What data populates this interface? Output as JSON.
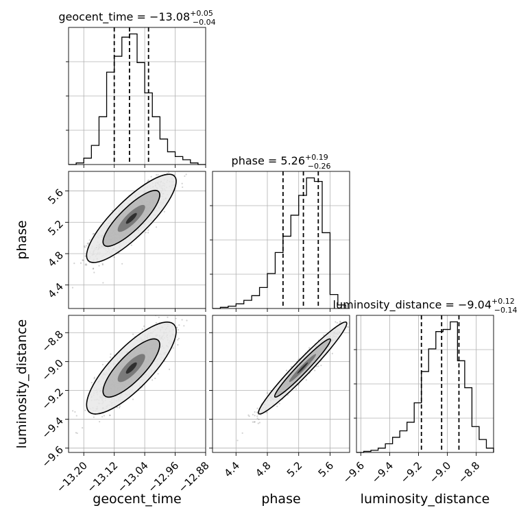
{
  "chart_data": {
    "type": "corner",
    "parameters": [
      "geocent_time",
      "phase",
      "luminosity_distance"
    ],
    "labels": {
      "geocent_time": "geocent_time",
      "phase": "phase",
      "luminosity_distance": "luminosity_distance"
    },
    "grid": true,
    "ranges": {
      "geocent_time": [
        -13.24,
        -12.88
      ],
      "phase": [
        4.1,
        5.85
      ],
      "luminosity_distance": [
        -9.63,
        -8.68
      ]
    },
    "ticks": {
      "geocent_time": [
        -13.2,
        -13.12,
        -13.04,
        -12.96,
        -12.88
      ],
      "phase": [
        4.4,
        4.8,
        5.2,
        5.6
      ],
      "luminosity_distance": [
        -9.6,
        -9.4,
        -9.2,
        -9.0,
        -8.8
      ]
    },
    "tick_labels": {
      "geocent_time": [
        "−13.20",
        "−13.12",
        "−13.04",
        "−12.96",
        "−12.88"
      ],
      "phase": [
        "4.4",
        "4.8",
        "5.2",
        "5.6"
      ],
      "luminosity_distance": [
        "−9.6",
        "−9.4",
        "−9.2",
        "−9.0",
        "−8.8"
      ]
    },
    "titles": [
      {
        "parameter": "geocent_time",
        "name": "geocent_time",
        "eq": " = ",
        "median": "−13.08",
        "plus": "+0.05",
        "minus": "−0.04"
      },
      {
        "parameter": "phase",
        "name": "phase",
        "eq": " = ",
        "median": "5.26",
        "plus": "+0.19",
        "minus": "−0.26"
      },
      {
        "parameter": "luminosity_distance",
        "name": "luminosity_distance",
        "eq": " = ",
        "median": "−9.04",
        "plus": "+0.12",
        "minus": "−0.14"
      }
    ],
    "quantiles": {
      "geocent_time": [
        -13.12,
        -13.08,
        -13.03
      ],
      "phase": [
        5.0,
        5.26,
        5.45
      ],
      "luminosity_distance": [
        -9.18,
        -9.04,
        -8.92
      ]
    },
    "histograms": {
      "geocent_time": {
        "edges": [
          -13.24,
          -13.22,
          -13.2,
          -13.18,
          -13.16,
          -13.14,
          -13.12,
          -13.1,
          -13.08,
          -13.06,
          -13.04,
          -13.02,
          -13.0,
          -12.98,
          -12.96,
          -12.94,
          -12.92,
          -12.9,
          -12.88
        ],
        "counts": [
          0,
          1,
          4,
          12,
          30,
          58,
          68,
          80,
          82,
          64,
          45,
          30,
          16,
          8,
          5,
          3,
          1,
          0
        ]
      },
      "phase": {
        "edges": [
          4.1,
          4.2,
          4.3,
          4.4,
          4.5,
          4.6,
          4.7,
          4.8,
          4.9,
          5.0,
          5.1,
          5.2,
          5.3,
          5.4,
          5.5,
          5.6,
          5.7,
          5.8
        ],
        "counts": [
          0,
          1,
          2,
          4,
          7,
          11,
          18,
          30,
          48,
          62,
          80,
          97,
          112,
          109,
          65,
          12,
          3
        ]
      },
      "luminosity_distance": {
        "edges": [
          -9.63,
          -9.58,
          -9.53,
          -9.48,
          -9.43,
          -9.38,
          -9.33,
          -9.28,
          -9.23,
          -9.18,
          -9.13,
          -9.08,
          -9.03,
          -8.98,
          -8.93,
          -8.88,
          -8.83,
          -8.78,
          -8.73,
          -8.68
        ],
        "counts": [
          0,
          1,
          2,
          4,
          8,
          14,
          20,
          28,
          46,
          75,
          96,
          112,
          114,
          121,
          85,
          60,
          24,
          12,
          4
        ]
      }
    },
    "pairs": [
      {
        "x": "geocent_time",
        "y": "phase",
        "corr": 0.84
      },
      {
        "x": "geocent_time",
        "y": "luminosity_distance",
        "corr": 0.8
      },
      {
        "x": "phase",
        "y": "luminosity_distance",
        "corr": 0.97
      }
    ],
    "summary": {
      "geocent_time": {
        "mean": -13.075,
        "sd": 0.048
      },
      "phase": {
        "mean": 5.25,
        "sd": 0.23
      },
      "luminosity_distance": {
        "mean": -9.045,
        "sd": 0.13
      }
    }
  }
}
